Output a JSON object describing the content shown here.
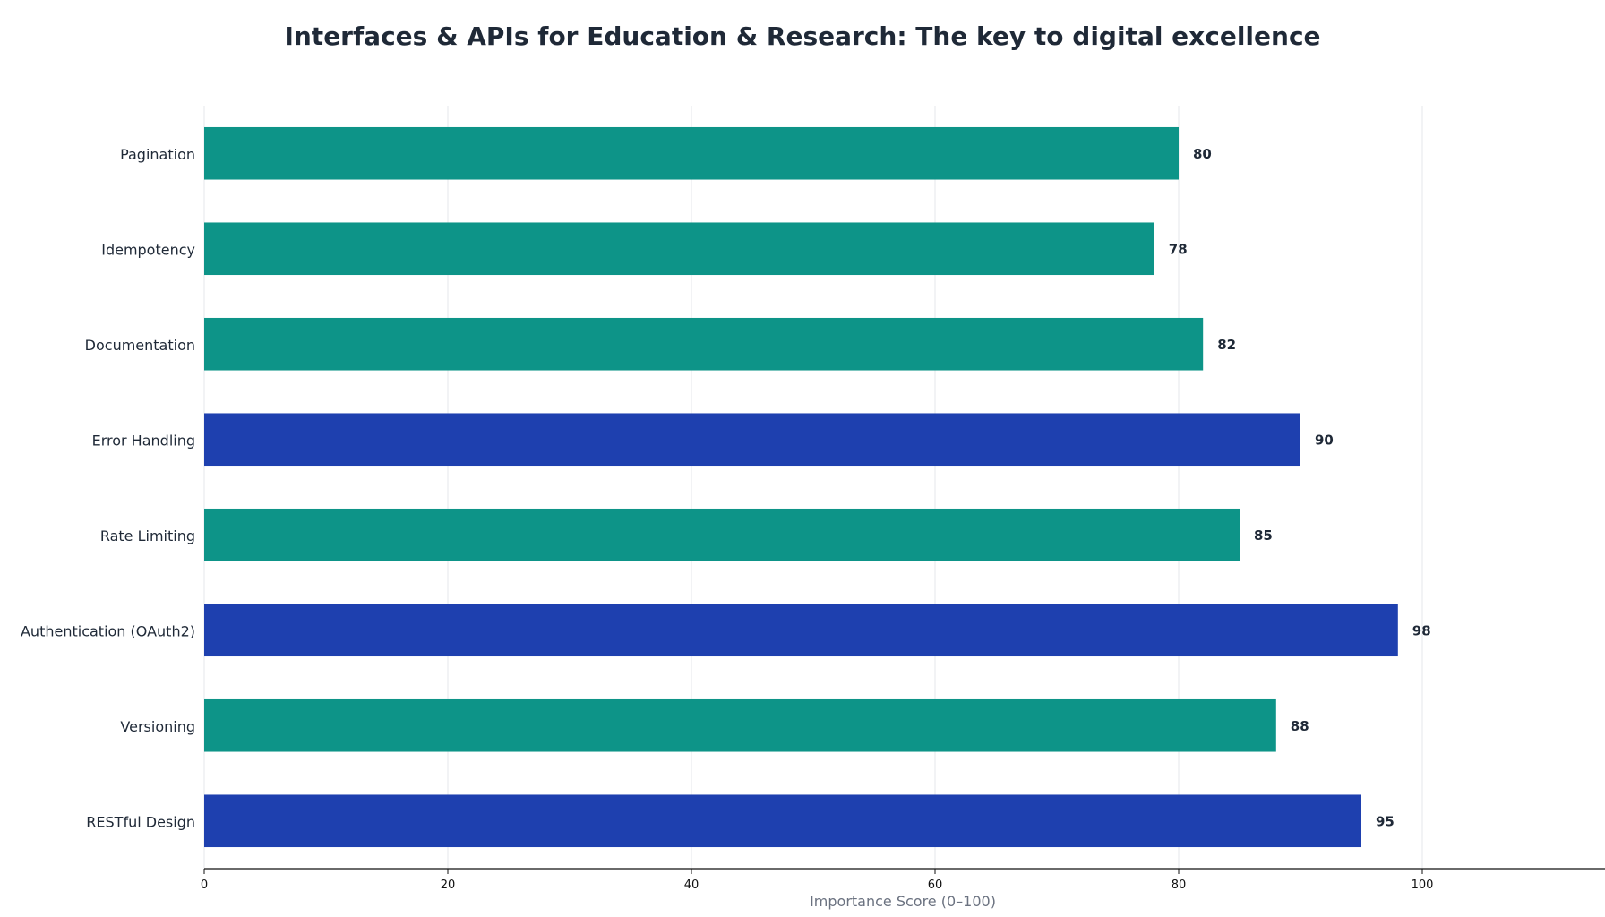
{
  "chart_data": {
    "type": "bar",
    "orientation": "horizontal",
    "title": "Interfaces & APIs for Education & Research: The key to digital excellence",
    "xlabel": "Importance Score (0–100)",
    "ylabel": "",
    "xlim": [
      0,
      115
    ],
    "xticks": [
      0,
      20,
      40,
      60,
      80,
      100
    ],
    "grid": true,
    "categories": [
      "RESTful Design",
      "Versioning",
      "Authentication (OAuth2)",
      "Rate Limiting",
      "Error Handling",
      "Documentation",
      "Idempotency",
      "Pagination"
    ],
    "values": [
      95,
      88,
      98,
      85,
      90,
      82,
      78,
      80
    ],
    "colors": [
      "#1e40af",
      "#0d9488",
      "#1e40af",
      "#0d9488",
      "#1e40af",
      "#0d9488",
      "#0d9488",
      "#0d9488"
    ]
  }
}
